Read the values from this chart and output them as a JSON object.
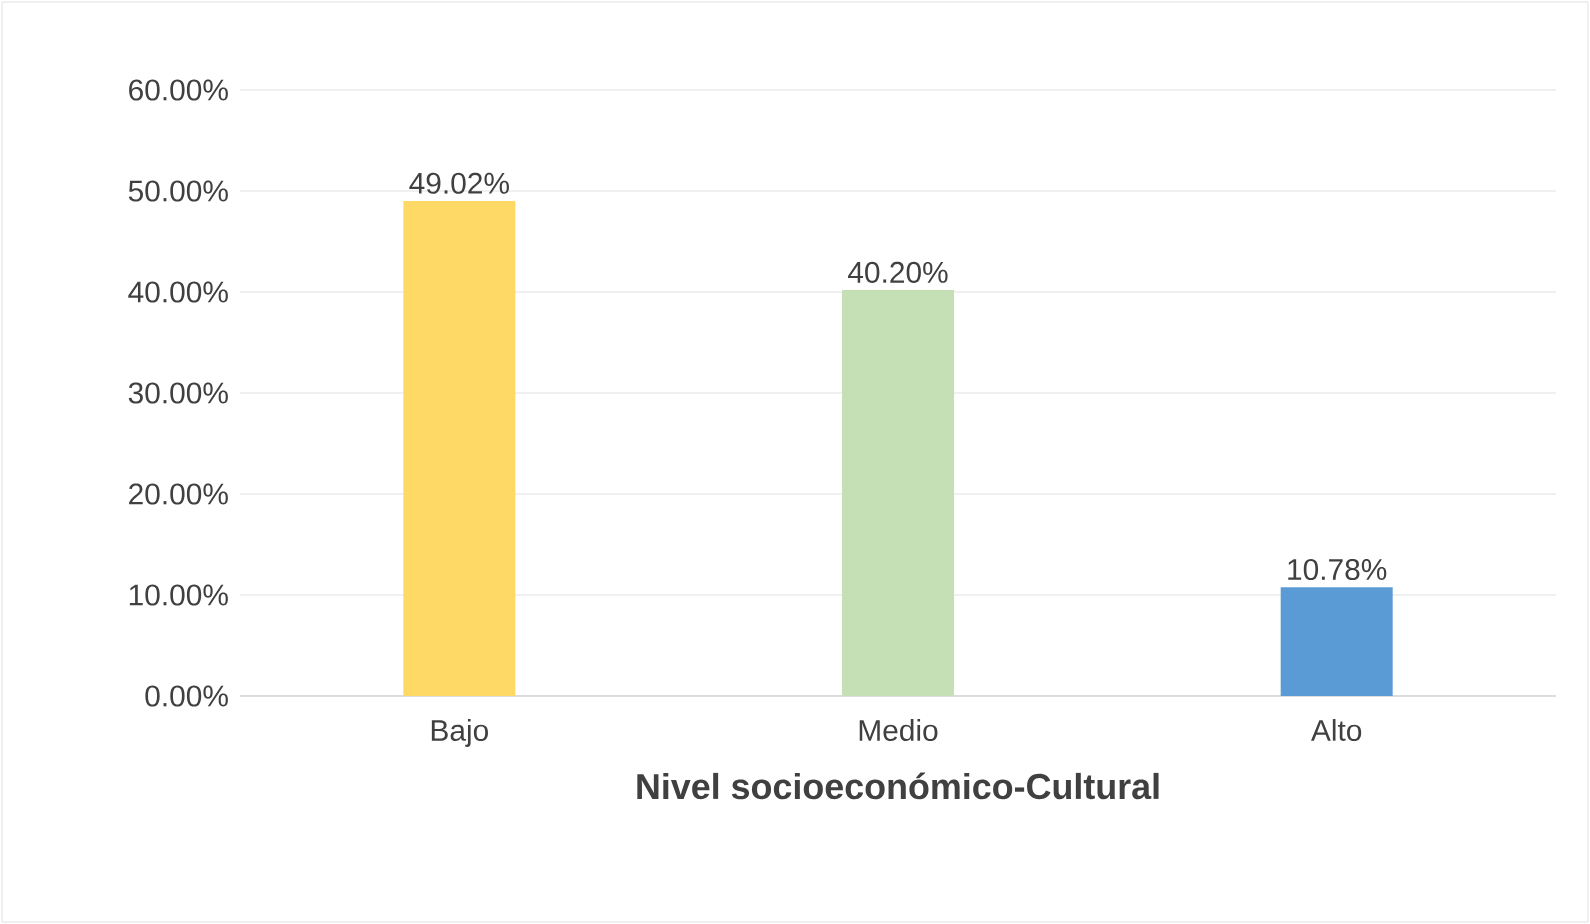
{
  "chart_data": {
    "type": "bar",
    "xlabel": "Nivel socioeconómico-Cultural",
    "categories": [
      "Bajo",
      "Medio",
      "Alto"
    ],
    "values": [
      49.02,
      40.2,
      10.78
    ],
    "colors": [
      "#ffd966",
      "#c5e0b4",
      "#5b9bd5"
    ],
    "value_labels": [
      "49.02%",
      "40.20%",
      "10.78%"
    ],
    "ylim": [
      0,
      60
    ],
    "yticks": [
      {
        "value": 0,
        "label": "0.00%"
      },
      {
        "value": 10,
        "label": "10.00%"
      },
      {
        "value": 20,
        "label": "20.00%"
      },
      {
        "value": 30,
        "label": "30.00%"
      },
      {
        "value": 40,
        "label": "40.00%"
      },
      {
        "value": 50,
        "label": "50.00%"
      },
      {
        "value": 60,
        "label": "60.00%"
      }
    ],
    "grid": "y"
  }
}
